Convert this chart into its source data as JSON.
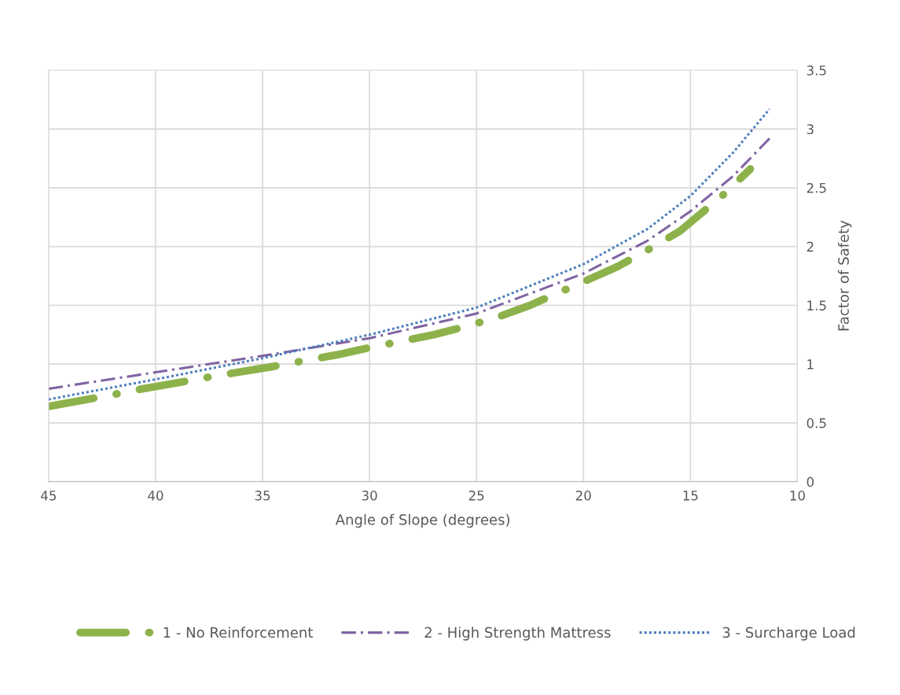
{
  "chart_data": {
    "type": "line",
    "xlabel": "Angle of Slope (degrees)",
    "ylabel": "Factor of Safety",
    "xlim": [
      45,
      10
    ],
    "xticks": [
      45,
      40,
      35,
      30,
      25,
      20,
      15,
      10
    ],
    "ylim": [
      0,
      3.5
    ],
    "yticks": [
      0,
      0.5,
      1,
      1.5,
      2,
      2.5,
      3,
      3.5
    ],
    "grid": true,
    "legend": "bottom",
    "marker": "none",
    "series": [
      {
        "name": "1 - No Reinforcement",
        "color": "#8db24b",
        "line_style": "dashed",
        "x": [
          45,
          42,
          40.6,
          39,
          37.5,
          34.5,
          33,
          31.5,
          30,
          27,
          25.5,
          24,
          22.5,
          20,
          18.4,
          17,
          15.5,
          13.4,
          12.2
        ],
        "values": [
          0.64,
          0.74,
          0.79,
          0.84,
          0.89,
          0.98,
          1.03,
          1.08,
          1.14,
          1.25,
          1.32,
          1.4,
          1.5,
          1.7,
          1.83,
          1.97,
          2.13,
          2.45,
          2.66
        ]
      },
      {
        "name": "2 - High Strength Mattress",
        "color": "#8064a2",
        "line_style": "dashed",
        "x": [
          45,
          40,
          35,
          30,
          25,
          20,
          17,
          15,
          13,
          11.3
        ],
        "values": [
          0.79,
          0.93,
          1.07,
          1.22,
          1.43,
          1.77,
          2.05,
          2.3,
          2.6,
          2.92
        ]
      },
      {
        "name": "3 - Surcharge Load",
        "color": "#4f81bd",
        "line_style": "dotted",
        "x": [
          45,
          40,
          35,
          30,
          25,
          20,
          17,
          15,
          13,
          11.3
        ],
        "values": [
          0.7,
          0.87,
          1.05,
          1.25,
          1.48,
          1.85,
          2.15,
          2.43,
          2.8,
          3.17
        ]
      }
    ]
  }
}
